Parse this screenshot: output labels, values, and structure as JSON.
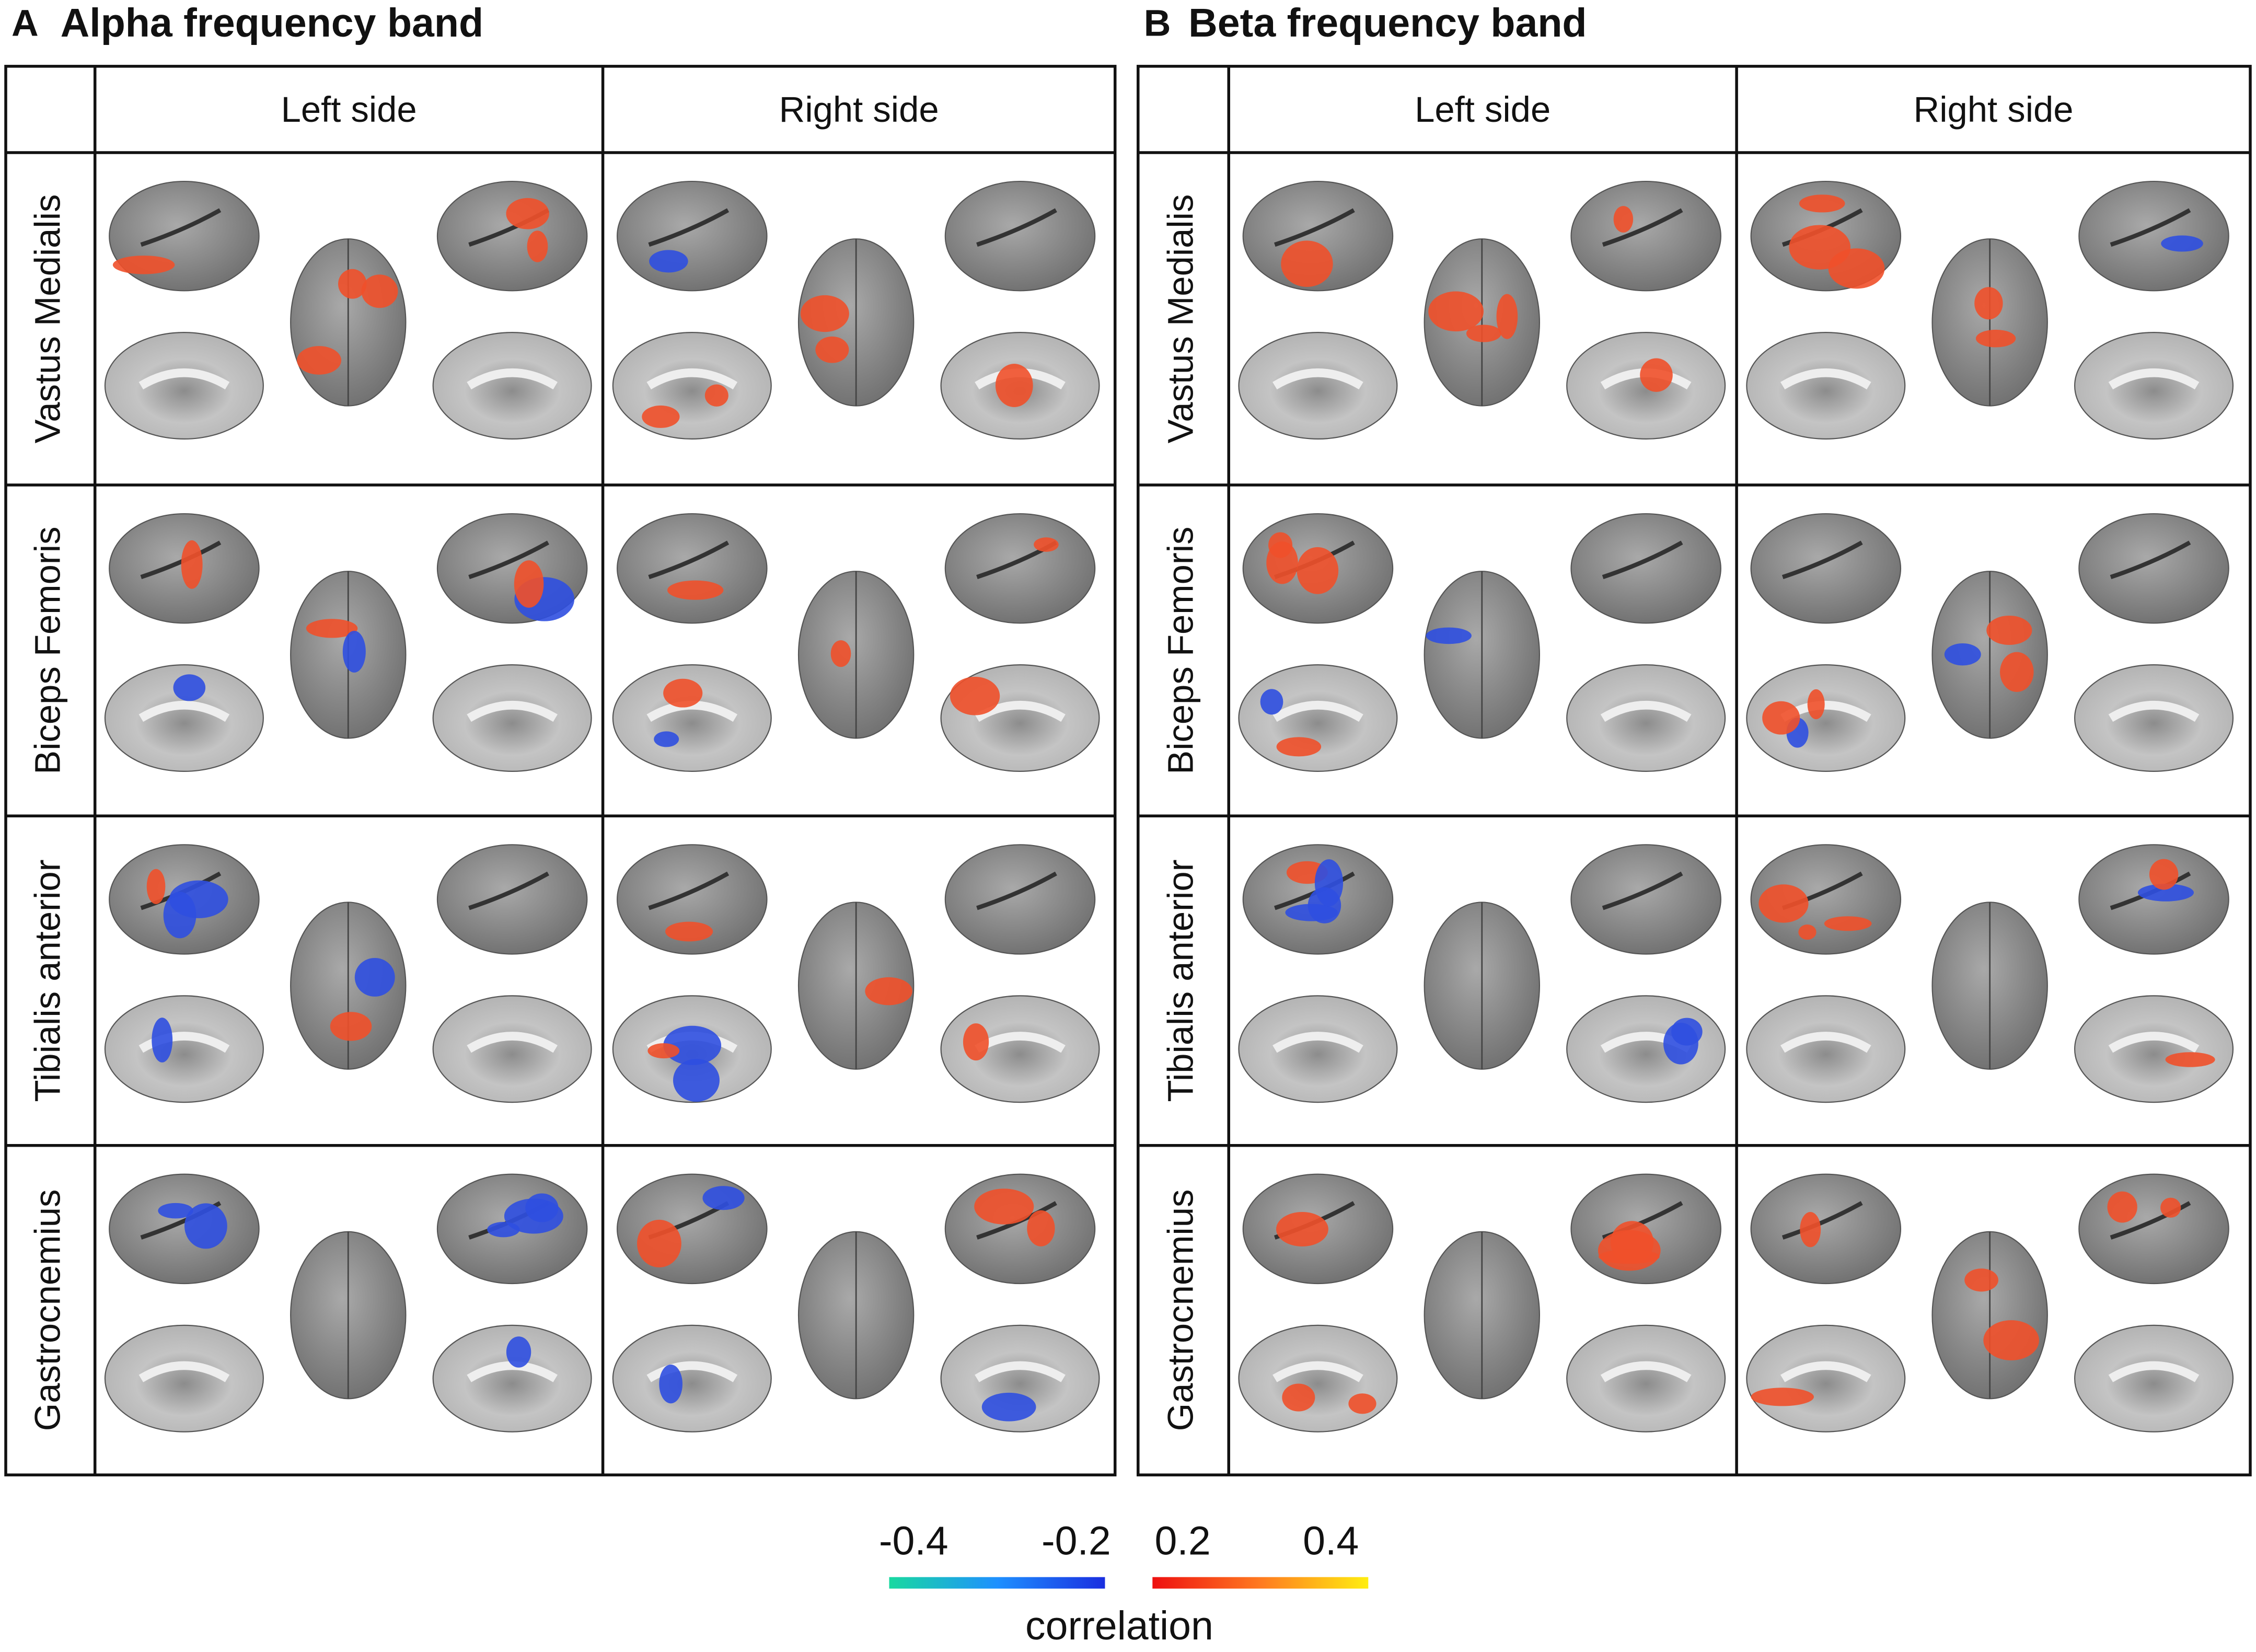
{
  "panels": [
    {
      "label": "A",
      "title": "Alpha frequency band",
      "columns": [
        "Left side",
        "Right side"
      ],
      "rows": [
        "Vastus Medialis",
        "Biceps Femoris",
        "Tibialis anterior",
        "Gastrocnemius"
      ]
    },
    {
      "label": "B",
      "title": "Beta frequency band",
      "columns": [
        "Left side",
        "Right side"
      ],
      "rows": [
        "Vastus Medialis",
        "Biceps Femoris",
        "Tibialis anterior",
        "Gastrocnemius"
      ]
    }
  ],
  "colorbar": {
    "ticks": [
      -0.4,
      -0.2,
      0.2,
      0.4
    ],
    "label": "correlation"
  }
}
